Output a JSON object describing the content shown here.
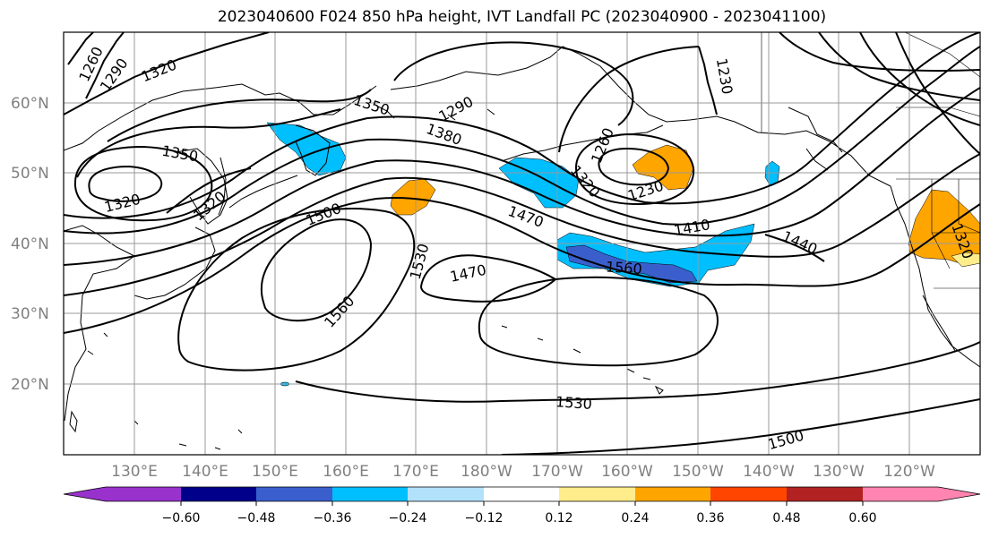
{
  "title": "2023040600 F024 850 hPa height, IVT Landfall PC (2023040900 - 2023041100)",
  "lon_labels": [
    "130°E",
    "140°E",
    "150°E",
    "160°E",
    "170°E",
    "180°W",
    "170°W",
    "160°W",
    "150°W",
    "140°W",
    "130°W",
    "120°W"
  ],
  "lat_labels": [
    "60°N",
    "50°N",
    "40°N",
    "30°N",
    "20°N"
  ],
  "contour_labels": [
    "1260",
    "1290",
    "1320",
    "1350",
    "1320",
    "1320",
    "1350",
    "1380",
    "1290",
    "1260",
    "1230",
    "1230",
    "1320",
    "1410",
    "1440",
    "1470",
    "1500",
    "1530",
    "1560",
    "1470",
    "1560",
    "1530",
    "1500",
    "1320"
  ],
  "colorbar": {
    "ticks": [
      "−0.60",
      "−0.48",
      "−0.36",
      "−0.24",
      "−0.12",
      "0.12",
      "0.24",
      "0.36",
      "0.48",
      "0.60"
    ],
    "colors": [
      "#9932cc",
      "#00008b",
      "#3a5fcd",
      "#00bfff",
      "#b2e2fb",
      "#ffffff",
      "#ffec8b",
      "#ffa500",
      "#ff4500",
      "#b22222",
      "#ff85b0"
    ]
  },
  "colors": {
    "blue_fill": "#00bfff",
    "dark_blue_fill": "#3a5fcd",
    "orange_fill": "#ffa500",
    "light_orange_fill": "#ffec8b",
    "contour": "#000000",
    "grid": "#999999",
    "coast": "#000000"
  }
}
